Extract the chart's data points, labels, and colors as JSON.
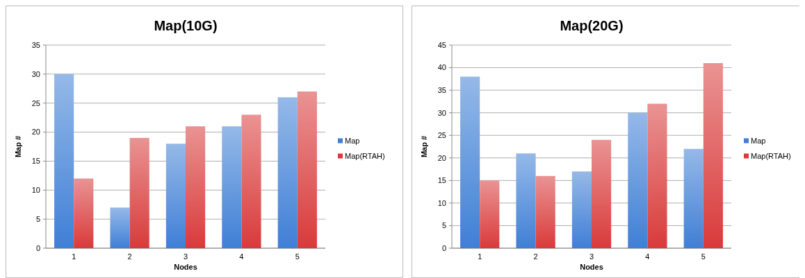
{
  "chart_data": [
    {
      "type": "bar",
      "title": "Map(10G)",
      "xlabel": "Nodes",
      "ylabel": "Map #",
      "categories": [
        "1",
        "2",
        "3",
        "4",
        "5"
      ],
      "series": [
        {
          "name": "Map",
          "color": "#3f7fd6",
          "values": [
            30,
            7,
            18,
            21,
            26
          ]
        },
        {
          "name": "Map(RTAH)",
          "color": "#d93a3a",
          "values": [
            12,
            19,
            21,
            23,
            27
          ]
        }
      ],
      "ylim": [
        0,
        35
      ],
      "yticks": [
        0,
        5,
        10,
        15,
        20,
        25,
        30,
        35
      ],
      "grid": "y",
      "legend": "right"
    },
    {
      "type": "bar",
      "title": "Map(20G)",
      "xlabel": "Nodes",
      "ylabel": "Map #",
      "categories": [
        "1",
        "2",
        "3",
        "4",
        "5"
      ],
      "series": [
        {
          "name": "Map",
          "color": "#3f7fd6",
          "values": [
            38,
            21,
            17,
            30,
            22
          ]
        },
        {
          "name": "Map(RTAH)",
          "color": "#d93a3a",
          "values": [
            15,
            16,
            24,
            32,
            41
          ]
        }
      ],
      "ylim": [
        0,
        45
      ],
      "yticks": [
        0,
        5,
        10,
        15,
        20,
        25,
        30,
        35,
        40,
        45
      ],
      "grid": "y",
      "legend": "right"
    }
  ]
}
